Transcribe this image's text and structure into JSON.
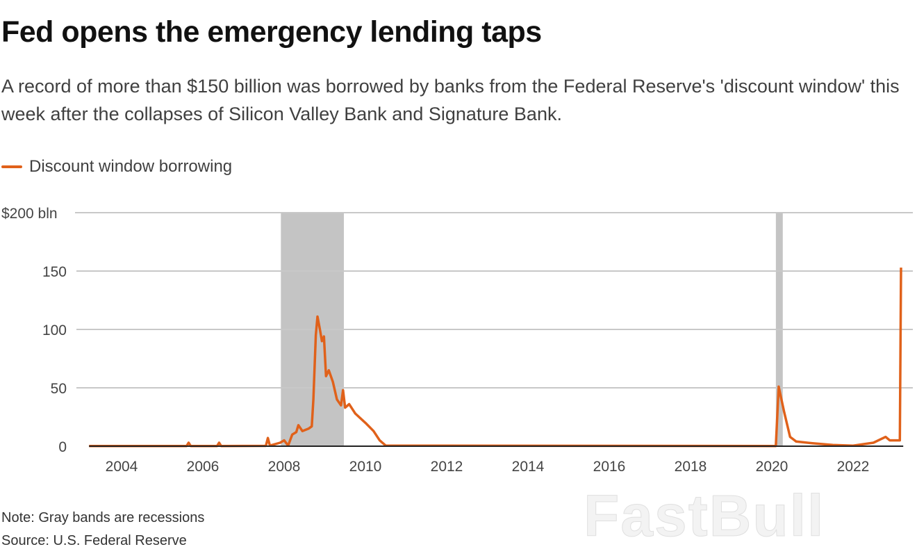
{
  "title": "Fed opens the emergency lending taps",
  "subtitle": "A record of more than $150 billion was borrowed by banks from the Federal Reserve's 'discount window' this week after the collapses of Silicon Valley Bank and Signature Bank.",
  "note": "Note: Gray bands are recessions",
  "source": "Source: U.S. Federal Reserve",
  "watermark": "FastBull",
  "chart_data": {
    "type": "line",
    "title": "Fed opens the emergency lending taps",
    "ylabel": "",
    "xlabel": "",
    "ylim": [
      0,
      200
    ],
    "xlim": [
      2003.2,
      2023.2
    ],
    "grid": true,
    "legend_placement": "top-left",
    "y_ticks": [
      {
        "v": 0,
        "label": "0"
      },
      {
        "v": 50,
        "label": "50"
      },
      {
        "v": 100,
        "label": "100"
      },
      {
        "v": 150,
        "label": "150"
      },
      {
        "v": 200,
        "label": "$200 bln"
      }
    ],
    "x_ticks": [
      2004,
      2006,
      2008,
      2010,
      2012,
      2014,
      2016,
      2018,
      2020,
      2022
    ],
    "recessions": [
      [
        2007.92,
        2009.47
      ],
      [
        2020.1,
        2020.27
      ]
    ],
    "recession_color": "#c4c4c4",
    "series": [
      {
        "name": "Discount window borrowing",
        "color": "#e0611a",
        "x": [
          2003.2,
          2005.6,
          2005.65,
          2005.7,
          2006.35,
          2006.4,
          2006.45,
          2007.55,
          2007.6,
          2007.65,
          2007.9,
          2008.0,
          2008.1,
          2008.2,
          2008.3,
          2008.35,
          2008.45,
          2008.6,
          2008.68,
          2008.72,
          2008.78,
          2008.82,
          2008.88,
          2008.93,
          2008.98,
          2009.03,
          2009.1,
          2009.2,
          2009.3,
          2009.4,
          2009.45,
          2009.5,
          2009.6,
          2009.75,
          2010.0,
          2010.2,
          2010.35,
          2010.5,
          2020.1,
          2020.17,
          2020.3,
          2020.45,
          2020.6,
          2021.0,
          2021.5,
          2022.0,
          2022.5,
          2022.8,
          2022.9,
          2023.0,
          2023.15,
          2023.18
        ],
        "values": [
          0.1,
          0.2,
          3,
          0.2,
          0.2,
          3,
          0.2,
          0.3,
          7,
          0.5,
          3,
          5,
          0.5,
          10,
          12,
          18,
          13,
          15,
          17,
          40,
          95,
          111,
          100,
          90,
          94,
          60,
          65,
          55,
          40,
          35,
          48,
          33,
          36,
          28,
          20,
          13,
          5,
          0.5,
          0.2,
          51,
          30,
          8,
          4,
          2.5,
          1,
          0.5,
          3,
          8,
          5,
          5,
          5,
          153
        ]
      }
    ]
  }
}
